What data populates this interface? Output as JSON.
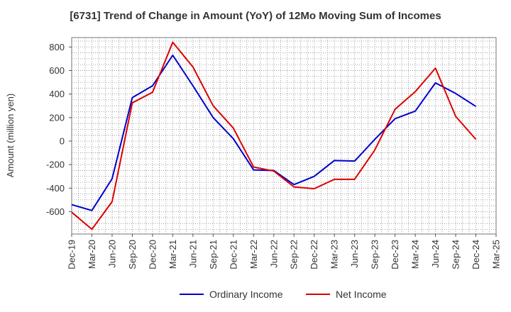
{
  "chart_data": {
    "type": "line",
    "title": "[6731]  Trend of Change in Amount (YoY) of 12Mo Moving Sum of Incomes",
    "xlabel": "",
    "ylabel": "Amount (million yen)",
    "categories": [
      "Dec-19",
      "Mar-20",
      "Jun-20",
      "Sep-20",
      "Dec-20",
      "Mar-21",
      "Jun-21",
      "Sep-21",
      "Dec-21",
      "Mar-22",
      "Jun-22",
      "Sep-22",
      "Dec-22",
      "Mar-23",
      "Jun-23",
      "Sep-23",
      "Dec-23",
      "Mar-24",
      "Jun-24",
      "Sep-24",
      "Dec-24",
      "Mar-25"
    ],
    "yticks": [
      800,
      600,
      400,
      200,
      0,
      -200,
      -400,
      -600
    ],
    "ylim": [
      -790,
      880
    ],
    "grid": true,
    "legend_position": "bottom-center",
    "series": [
      {
        "name": "Ordinary Income",
        "color": "#0000cc",
        "values": [
          -540,
          -590,
          -320,
          370,
          470,
          730,
          470,
          200,
          20,
          -245,
          -250,
          -370,
          -300,
          -165,
          -170,
          15,
          190,
          255,
          495,
          405,
          295,
          null
        ]
      },
      {
        "name": "Net Income",
        "color": "#dd0000",
        "values": [
          -605,
          -750,
          -515,
          325,
          415,
          840,
          630,
          300,
          110,
          -220,
          -255,
          -390,
          -405,
          -325,
          -325,
          -75,
          270,
          420,
          620,
          210,
          15,
          null
        ]
      }
    ]
  }
}
